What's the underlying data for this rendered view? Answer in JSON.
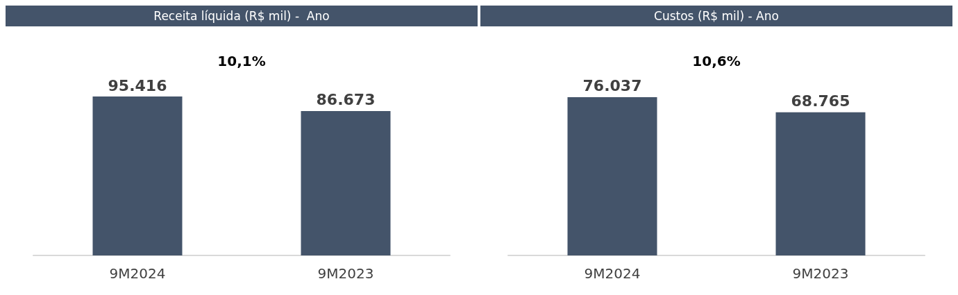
{
  "chart_data": [
    {
      "type": "bar",
      "title": "Receita líquida (R$ mil) -  Ano",
      "categories": [
        "9M2024",
        "9M2023"
      ],
      "values": [
        95416,
        86673
      ],
      "value_labels": [
        "95.416",
        "86.673"
      ],
      "color": "#44546a",
      "annotations": [
        "10,1%"
      ]
    },
    {
      "type": "bar",
      "title": "Custos (R$ mil) - Ano",
      "categories": [
        "9M2024",
        "9M2023"
      ],
      "values": [
        76037,
        68765
      ],
      "value_labels": [
        "76.037",
        "68.765"
      ],
      "color": "#44546a",
      "annotations": [
        "10,6%"
      ]
    }
  ]
}
